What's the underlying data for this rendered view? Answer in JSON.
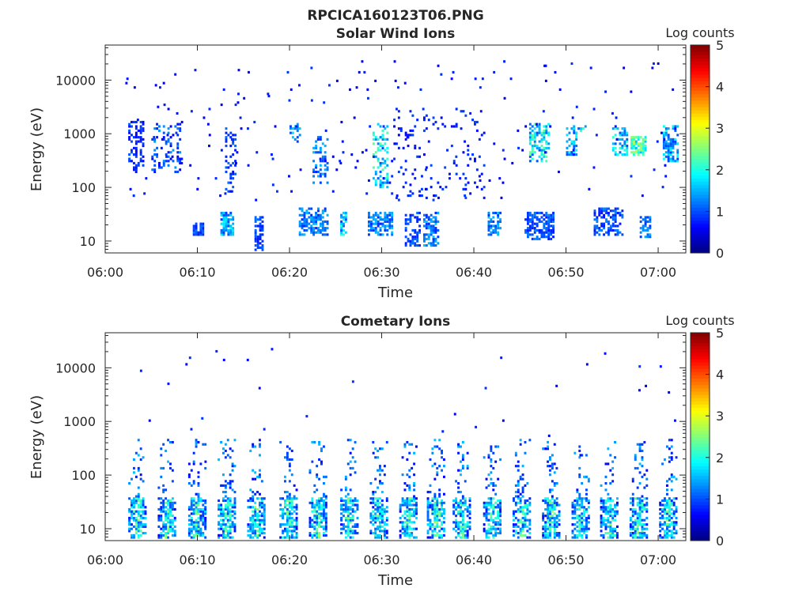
{
  "figure_title": "RPCICA160123T06.PNG",
  "colors": {
    "colormap": [
      "#00007f",
      "#0000ff",
      "#007fff",
      "#00ffff",
      "#7fff7f",
      "#ffff00",
      "#ff7f00",
      "#ff0000",
      "#7f0000"
    ]
  },
  "chart_data": [
    {
      "type": "heatmap",
      "title": "Solar Wind Ions",
      "xlabel": "Time",
      "ylabel": "Energy (eV)",
      "x_ticks": [
        "06:00",
        "06:10",
        "06:20",
        "06:30",
        "06:40",
        "06:50",
        "07:00"
      ],
      "x_tick_minutes": [
        0,
        10,
        20,
        30,
        40,
        50,
        60
      ],
      "xlim_minutes": [
        0,
        63
      ],
      "y_scale": "log",
      "ylim": [
        6,
        45000
      ],
      "y_ticks": [
        "10",
        "100",
        "1000",
        "10000"
      ],
      "y_tick_values": [
        10,
        100,
        1000,
        10000
      ],
      "colorbar": {
        "label": "Log counts",
        "ticks": [
          "0",
          "1",
          "2",
          "3",
          "4",
          "5"
        ],
        "range": [
          0,
          5
        ]
      },
      "clusters": [
        {
          "t": [
            2.5,
            4.0
          ],
          "e": [
            220,
            1800
          ],
          "density": 0.35,
          "level": [
            0.6,
            1.1
          ]
        },
        {
          "t": [
            5.0,
            8.0
          ],
          "e": [
            200,
            1600
          ],
          "density": 0.3,
          "level": [
            0.6,
            1.4
          ]
        },
        {
          "t": [
            9.5,
            10.5
          ],
          "e": [
            13,
            22
          ],
          "density": 0.9,
          "level": [
            0.7,
            1.2
          ]
        },
        {
          "t": [
            12.5,
            13.8
          ],
          "e": [
            13,
            35
          ],
          "density": 0.7,
          "level": [
            0.8,
            2.0
          ]
        },
        {
          "t": [
            13.0,
            14.0
          ],
          "e": [
            70,
            1500
          ],
          "density": 0.25,
          "level": [
            0.7,
            1.2
          ]
        },
        {
          "t": [
            16.2,
            17.0
          ],
          "e": [
            7,
            30
          ],
          "density": 0.5,
          "level": [
            0.7,
            1.2
          ]
        },
        {
          "t": [
            20.0,
            21.0
          ],
          "e": [
            700,
            1500
          ],
          "density": 0.3,
          "level": [
            0.8,
            1.8
          ]
        },
        {
          "t": [
            21.0,
            24.0
          ],
          "e": [
            13,
            40
          ],
          "density": 0.6,
          "level": [
            0.8,
            1.6
          ]
        },
        {
          "t": [
            22.5,
            24.0
          ],
          "e": [
            120,
            900
          ],
          "density": 0.3,
          "level": [
            0.8,
            1.6
          ]
        },
        {
          "t": [
            25.5,
            26.2
          ],
          "e": [
            13,
            35
          ],
          "density": 0.6,
          "level": [
            0.9,
            2.2
          ]
        },
        {
          "t": [
            28.5,
            31.0
          ],
          "e": [
            13,
            35
          ],
          "density": 0.7,
          "level": [
            0.8,
            1.6
          ]
        },
        {
          "t": [
            29.0,
            30.5
          ],
          "e": [
            100,
            1500
          ],
          "density": 0.35,
          "level": [
            0.9,
            2.4
          ]
        },
        {
          "t": [
            31.0,
            41.0
          ],
          "e": [
            60,
            3000
          ],
          "density": 0.08,
          "level": [
            0.6,
            1.0
          ]
        },
        {
          "t": [
            32.5,
            34.0
          ],
          "e": [
            8,
            35
          ],
          "density": 0.5,
          "level": [
            0.7,
            1.2
          ]
        },
        {
          "t": [
            34.5,
            36.0
          ],
          "e": [
            8,
            35
          ],
          "density": 0.6,
          "level": [
            0.8,
            1.6
          ]
        },
        {
          "t": [
            41.5,
            42.8
          ],
          "e": [
            13,
            35
          ],
          "density": 0.6,
          "level": [
            0.8,
            1.6
          ]
        },
        {
          "t": [
            45.5,
            48.5
          ],
          "e": [
            11,
            35
          ],
          "density": 0.6,
          "level": [
            0.7,
            1.3
          ]
        },
        {
          "t": [
            46.0,
            48.0
          ],
          "e": [
            300,
            1500
          ],
          "density": 0.5,
          "level": [
            1.0,
            2.4
          ]
        },
        {
          "t": [
            50.0,
            51.0
          ],
          "e": [
            400,
            1400
          ],
          "density": 0.5,
          "level": [
            0.9,
            2.0
          ]
        },
        {
          "t": [
            51.0,
            52.0
          ],
          "e": [
            1000,
            1400
          ],
          "density": 0.4,
          "level": [
            1.0,
            2.2
          ]
        },
        {
          "t": [
            53.0,
            56.0
          ],
          "e": [
            13,
            40
          ],
          "density": 0.5,
          "level": [
            0.7,
            1.3
          ]
        },
        {
          "t": [
            55.0,
            56.5
          ],
          "e": [
            400,
            1300
          ],
          "density": 0.4,
          "level": [
            1.0,
            2.2
          ]
        },
        {
          "t": [
            57.0,
            58.5
          ],
          "e": [
            400,
            900
          ],
          "density": 0.8,
          "level": [
            1.5,
            2.8
          ]
        },
        {
          "t": [
            58.0,
            59.0
          ],
          "e": [
            12,
            30
          ],
          "density": 0.6,
          "level": [
            0.8,
            1.5
          ]
        },
        {
          "t": [
            60.5,
            62.0
          ],
          "e": [
            300,
            1400
          ],
          "density": 0.5,
          "level": [
            0.9,
            2.0
          ]
        }
      ],
      "scatter": {
        "t": [
          2,
          62
        ],
        "e": [
          60,
          25000
        ],
        "count": 200
      }
    },
    {
      "type": "heatmap",
      "title": "Cometary Ions",
      "xlabel": "Time",
      "ylabel": "Energy (eV)",
      "x_ticks": [
        "06:00",
        "06:10",
        "06:20",
        "06:30",
        "06:40",
        "06:50",
        "07:00"
      ],
      "x_tick_minutes": [
        0,
        10,
        20,
        30,
        40,
        50,
        60
      ],
      "xlim_minutes": [
        0,
        63
      ],
      "y_scale": "log",
      "ylim": [
        6,
        45000
      ],
      "y_ticks": [
        "10",
        "100",
        "1000",
        "10000"
      ],
      "y_tick_values": [
        10,
        100,
        1000,
        10000
      ],
      "colorbar": {
        "label": "Log counts",
        "ticks": [
          "0",
          "1",
          "2",
          "3",
          "4",
          "5"
        ],
        "range": [
          0,
          5
        ]
      },
      "bursts_minutes": [
        3.4,
        6.6,
        9.9,
        13.1,
        16.3,
        19.8,
        23.0,
        26.4,
        29.6,
        32.8,
        35.8,
        38.6,
        41.9,
        45.1,
        48.3,
        51.5,
        54.6,
        57.8,
        61.0
      ],
      "burst_core_energy": [
        7,
        40
      ],
      "burst_core_level": [
        0.9,
        2.6
      ],
      "burst_tail_energy": [
        40,
        450
      ],
      "burst_tail_level": [
        0.6,
        1.6
      ],
      "scatter": {
        "t": [
          2,
          62
        ],
        "e": [
          120,
          25000
        ],
        "count": 35
      }
    }
  ]
}
